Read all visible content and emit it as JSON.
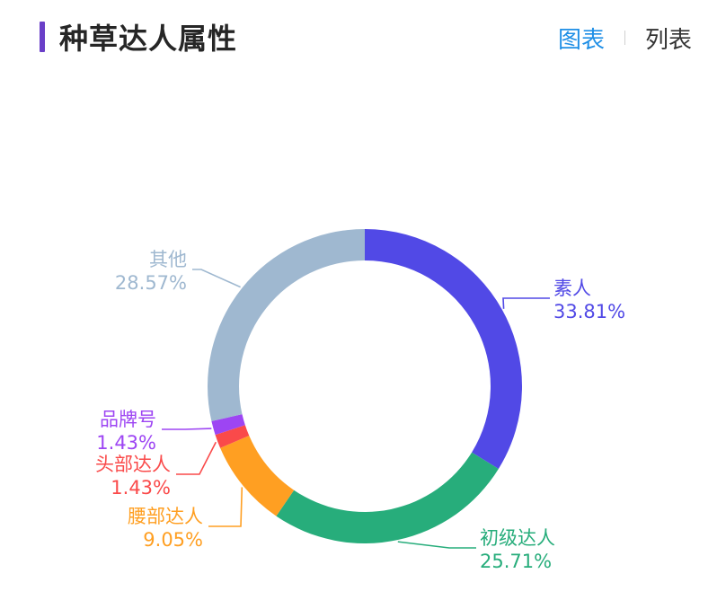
{
  "header": {
    "title": "种草达人属性",
    "tabs": [
      {
        "label": "图表",
        "active": true
      },
      {
        "label": "列表",
        "active": false
      }
    ],
    "accent_color": "#6a3fc8",
    "active_tab_color": "#1f8fe6",
    "inactive_tab_color": "#333333"
  },
  "chart_data": {
    "type": "pie",
    "donut": true,
    "legend": "none",
    "slices": [
      {
        "label": "素人",
        "value": 33.81,
        "value_label": "33.81%",
        "color": "#5149e6"
      },
      {
        "label": "初级达人",
        "value": 25.71,
        "value_label": "25.71%",
        "color": "#27ad7b"
      },
      {
        "label": "腰部达人",
        "value": 9.05,
        "value_label": "9.05%",
        "color": "#ff9f22"
      },
      {
        "label": "头部达人",
        "value": 1.43,
        "value_label": "1.43%",
        "color": "#fa4a4a"
      },
      {
        "label": "品牌号",
        "value": 1.43,
        "value_label": "1.43%",
        "color": "#9d45f3"
      },
      {
        "label": "其他",
        "value": 28.57,
        "value_label": "28.57%",
        "color": "#9fb8d0"
      }
    ]
  }
}
